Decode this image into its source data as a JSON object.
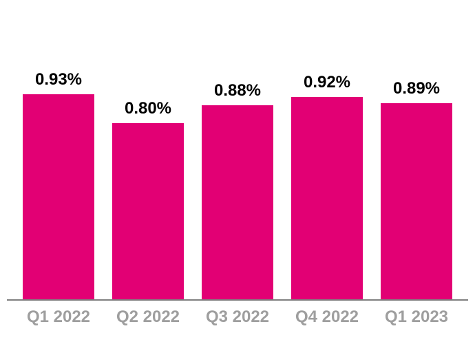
{
  "chart_data": {
    "type": "bar",
    "title": "",
    "xlabel": "",
    "ylabel": "",
    "categories": [
      "Q1 2022",
      "Q2 2022",
      "Q3 2022",
      "Q4 2022",
      "Q1 2023"
    ],
    "values": [
      0.93,
      0.8,
      0.88,
      0.92,
      0.89
    ],
    "value_labels": [
      "0.93%",
      "0.80%",
      "0.88%",
      "0.92%",
      "0.89%"
    ],
    "ylim": [
      0,
      1.0
    ],
    "grid": false,
    "legend_position": "none",
    "bar_color": "#e20074",
    "value_label_color": "#000000",
    "axis_tick_label_color": "#9e9e9e",
    "baseline_color": "#7f7f7f"
  }
}
